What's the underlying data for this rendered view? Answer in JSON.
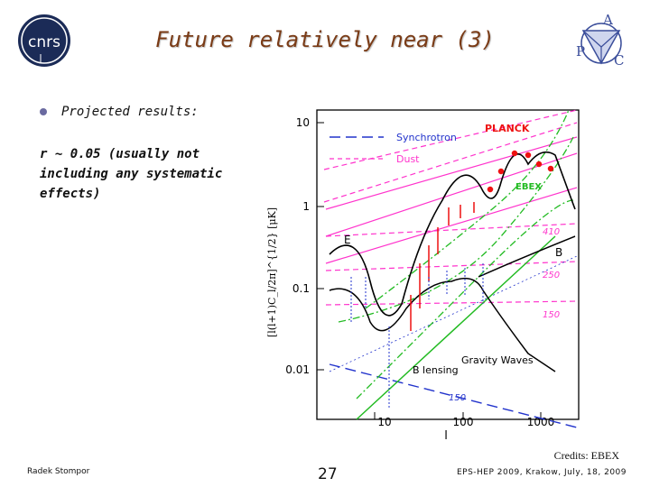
{
  "slide": {
    "title": "Future relatively near (3)",
    "bullet": "Projected results:",
    "body": "r ~ 0.05 (usually not including any systematic effects)",
    "credits": "Credits: EBEX",
    "footer_left": "Radek Stompor",
    "page_number": "27",
    "footer_right": "EPS-HEP 2009, Krakow, July, 18, 2009"
  },
  "logos": {
    "left": "cnrs",
    "right_letters": [
      "A",
      "P",
      "C"
    ]
  },
  "plot": {
    "y_ticks": [
      "10",
      "1",
      "0.1",
      "0.01"
    ],
    "x_ticks": [
      "10",
      "100",
      "1000"
    ],
    "x_label": "l",
    "y_label": "[l(l+1)C_l/2π]^{1/2} [μK]",
    "legend": [
      "Synchrotron",
      "Dust"
    ],
    "labels": {
      "planck": "PLANCK",
      "ebex": "EBEX",
      "e": "E",
      "b": "B",
      "f410": "410",
      "f250": "250",
      "f150": "150",
      "f150b": "150",
      "gw": "Gravity Waves",
      "bl": "B lensing"
    }
  },
  "colors": {
    "title": "#7a3b16",
    "magenta": "#ff33cc",
    "green": "#22bb22",
    "blue": "#2233cc",
    "red": "#ee1111"
  }
}
